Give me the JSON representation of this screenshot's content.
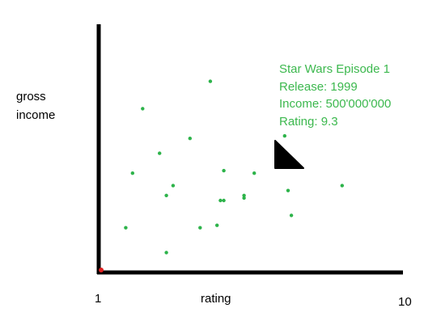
{
  "colors": {
    "axis": "#000000",
    "point": "#2db34a",
    "annotation_text": "#3cb84e",
    "origin_marker": "#e02020",
    "cursor": "#000000"
  },
  "chart_data": {
    "type": "scatter",
    "title": "",
    "xlabel": "rating",
    "ylabel_lines": [
      "gross",
      "income"
    ],
    "x_ticks": [
      "1",
      "10"
    ],
    "xlim": [
      1,
      10
    ],
    "grid": false,
    "legend": "none",
    "points": [
      {
        "x": 1.8,
        "y": 0.18
      },
      {
        "x": 2.0,
        "y": 0.4
      },
      {
        "x": 2.3,
        "y": 0.66
      },
      {
        "x": 2.8,
        "y": 0.48
      },
      {
        "x": 3.0,
        "y": 0.08
      },
      {
        "x": 3.0,
        "y": 0.31
      },
      {
        "x": 3.2,
        "y": 0.35
      },
      {
        "x": 3.7,
        "y": 0.54
      },
      {
        "x": 4.0,
        "y": 0.18
      },
      {
        "x": 4.3,
        "y": 0.77
      },
      {
        "x": 4.5,
        "y": 0.19
      },
      {
        "x": 4.6,
        "y": 0.29
      },
      {
        "x": 4.7,
        "y": 0.41
      },
      {
        "x": 4.7,
        "y": 0.29
      },
      {
        "x": 5.3,
        "y": 0.3
      },
      {
        "x": 5.3,
        "y": 0.31
      },
      {
        "x": 5.6,
        "y": 0.4
      },
      {
        "x": 6.5,
        "y": 0.55
      },
      {
        "x": 6.6,
        "y": 0.33
      },
      {
        "x": 6.7,
        "y": 0.23
      },
      {
        "x": 8.2,
        "y": 0.35
      }
    ],
    "annotation": {
      "lines": [
        "Star Wars Episode 1",
        "Release: 1999",
        "Income: 500'000'000",
        "Rating: 9.3"
      ]
    }
  }
}
